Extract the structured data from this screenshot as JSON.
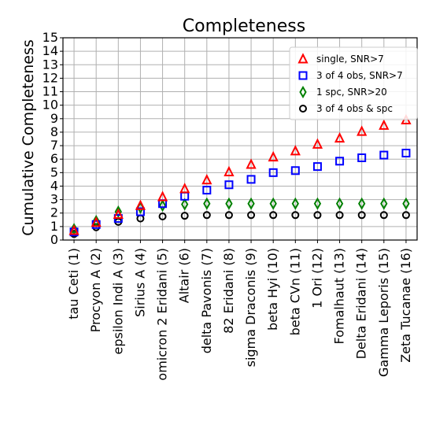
{
  "chart_data": {
    "type": "scatter",
    "title": "Completeness",
    "ylabel": "Cumulative Completeness",
    "xlabel": "",
    "ylim": [
      0,
      15
    ],
    "yticks": [
      0,
      1,
      2,
      3,
      4,
      5,
      6,
      7,
      8,
      9,
      10,
      11,
      12,
      13,
      14,
      15
    ],
    "grid": true,
    "legend_position": "top-right",
    "categories": [
      "tau Ceti (1)",
      "Procyon A (2)",
      "epsilon Indi A (3)",
      "Sirius A (4)",
      "omicron 2 Eridani (5)",
      "Altair (6)",
      "delta Pavonis (7)",
      "82 Eridani (8)",
      "sigma Draconis (9)",
      "beta Hyi (10)",
      "beta CVn (11)",
      "1 Ori (12)",
      "Fomalhaut (13)",
      "Delta Eridani (14)",
      "Gamma Leporis (15)",
      "Zeta Tucanae (16)"
    ],
    "series": [
      {
        "name": "single, SNR>7",
        "marker": "triangle",
        "color": "#ff0000",
        "values": [
          0.7,
          1.3,
          1.9,
          2.55,
          3.2,
          3.8,
          4.45,
          5.05,
          5.6,
          6.15,
          6.6,
          7.1,
          7.55,
          8.05,
          8.5,
          8.9
        ]
      },
      {
        "name": "3 of 4 obs, SNR>7",
        "marker": "square",
        "color": "#0000ff",
        "values": [
          0.6,
          1.15,
          1.6,
          2.1,
          2.7,
          3.25,
          3.7,
          4.1,
          4.5,
          5.0,
          5.15,
          5.45,
          5.85,
          6.1,
          6.3,
          6.45
        ]
      },
      {
        "name": "1 spc, SNR>20",
        "marker": "diamond",
        "color": "#008000",
        "values": [
          0.8,
          1.4,
          2.1,
          2.4,
          2.55,
          2.65,
          2.7,
          2.7,
          2.7,
          2.7,
          2.7,
          2.7,
          2.7,
          2.7,
          2.7,
          2.7
        ]
      },
      {
        "name": "3 of 4 obs & spc",
        "marker": "circle",
        "color": "#000000",
        "values": [
          0.45,
          0.95,
          1.35,
          1.6,
          1.75,
          1.8,
          1.85,
          1.85,
          1.85,
          1.85,
          1.85,
          1.85,
          1.85,
          1.85,
          1.85,
          1.85
        ]
      }
    ]
  }
}
